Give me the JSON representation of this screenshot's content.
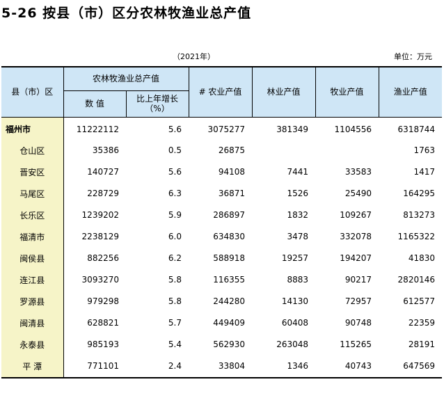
{
  "title": "5-26  按县（市）区分农林牧渔业总产值",
  "year_note": "（2021年）",
  "unit_note": "单位：万元",
  "headers": {
    "region": "县（市）区",
    "total_group": "农林牧渔业总产值",
    "value": "数  值",
    "growth": "比上年增长（%）",
    "agri": "# 农业产值",
    "forestry": "林业产值",
    "livestock": "牧业产值",
    "fishery": "渔业产值"
  },
  "rows": [
    {
      "name": "福州市",
      "value": "11222112",
      "growth": "5.6",
      "agri": "3075277",
      "forestry": "381349",
      "livestock": "1104556",
      "fishery": "6318744"
    },
    {
      "name": "仓山区",
      "value": "35386",
      "growth": "0.5",
      "agri": "26875",
      "forestry": "",
      "livestock": "",
      "fishery": "1763"
    },
    {
      "name": "晋安区",
      "value": "140727",
      "growth": "5.6",
      "agri": "94108",
      "forestry": "7441",
      "livestock": "33583",
      "fishery": "1417"
    },
    {
      "name": "马尾区",
      "value": "228729",
      "growth": "6.3",
      "agri": "36871",
      "forestry": "1526",
      "livestock": "25490",
      "fishery": "164295"
    },
    {
      "name": "长乐区",
      "value": "1239202",
      "growth": "5.9",
      "agri": "286897",
      "forestry": "1832",
      "livestock": "109267",
      "fishery": "813273"
    },
    {
      "name": "福清市",
      "value": "2238129",
      "growth": "6.0",
      "agri": "634830",
      "forestry": "3478",
      "livestock": "332078",
      "fishery": "1165322"
    },
    {
      "name": "闽侯县",
      "value": "882256",
      "growth": "6.2",
      "agri": "588918",
      "forestry": "19257",
      "livestock": "194207",
      "fishery": "41830"
    },
    {
      "name": "连江县",
      "value": "3093270",
      "growth": "5.8",
      "agri": "116355",
      "forestry": "8883",
      "livestock": "90217",
      "fishery": "2820146"
    },
    {
      "name": "罗源县",
      "value": "979298",
      "growth": "5.8",
      "agri": "244280",
      "forestry": "14130",
      "livestock": "72957",
      "fishery": "612577"
    },
    {
      "name": "闽清县",
      "value": "628821",
      "growth": "5.7",
      "agri": "449409",
      "forestry": "60408",
      "livestock": "90748",
      "fishery": "22359"
    },
    {
      "name": "永泰县",
      "value": "985193",
      "growth": "5.4",
      "agri": "562930",
      "forestry": "263048",
      "livestock": "115265",
      "fishery": "28191"
    },
    {
      "name": "平  潭",
      "value": "771101",
      "growth": "2.4",
      "agri": "33804",
      "forestry": "1346",
      "livestock": "40743",
      "fishery": "647569"
    }
  ]
}
